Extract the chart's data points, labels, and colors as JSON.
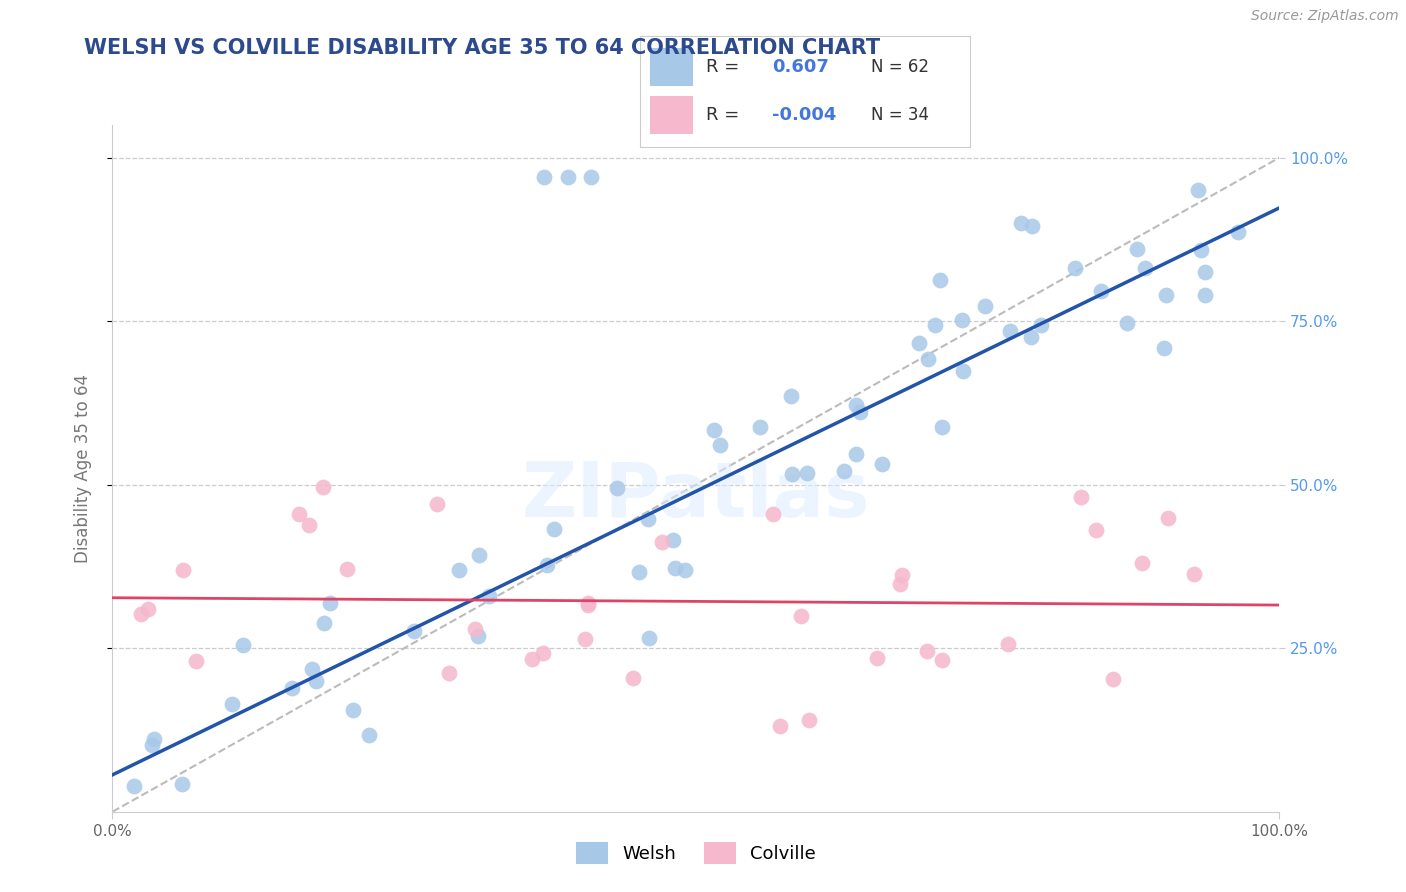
{
  "title": "WELSH VS COLVILLE DISABILITY AGE 35 TO 64 CORRELATION CHART",
  "source_text": "Source: ZipAtlas.com",
  "ylabel": "Disability Age 35 to 64",
  "welsh_R": 0.607,
  "welsh_N": 62,
  "colville_R": -0.004,
  "colville_N": 34,
  "welsh_color": "#a8c8e8",
  "colville_color": "#f5b8cc",
  "welsh_line_color": "#2255aa",
  "colville_line_color": "#dd4466",
  "diag_line_color": "#bbbbbb",
  "background_color": "#ffffff",
  "grid_color": "#cccccc",
  "title_color": "#2c4a8c",
  "label_color": "#777777",
  "right_tick_color": "#5599ee",
  "legend_text_color": "#333333",
  "legend_value_color": "#4477dd"
}
